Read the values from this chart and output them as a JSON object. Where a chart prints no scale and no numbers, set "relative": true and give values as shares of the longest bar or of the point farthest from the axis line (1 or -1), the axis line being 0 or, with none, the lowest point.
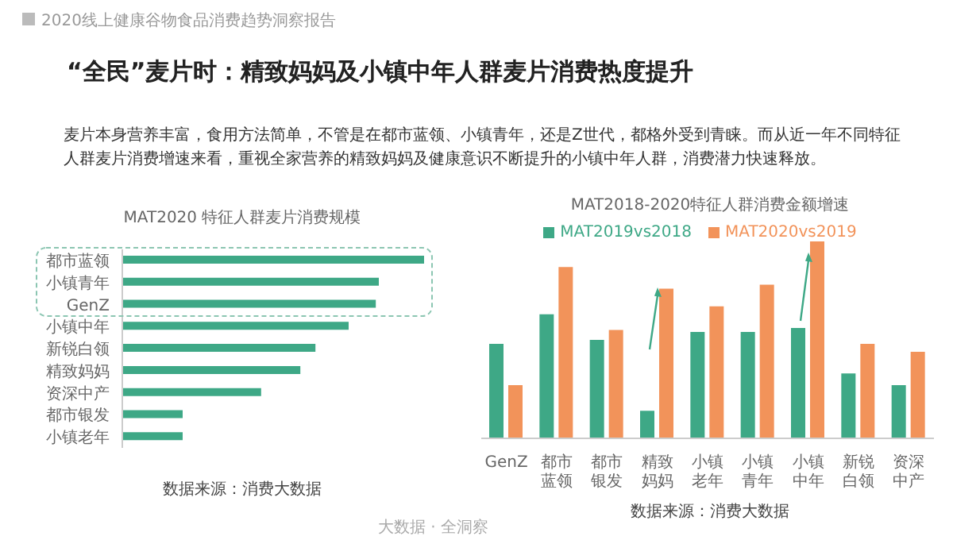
{
  "chart_data": [
    {
      "type": "bar",
      "orientation": "horizontal",
      "relative": true,
      "title": "MAT2020 特征人群麦片消费规模",
      "categories": [
        "都市蓝领",
        "小镇青年",
        "GenZ",
        "小镇中年",
        "新锐白领",
        "精致妈妈",
        "资深中产",
        "都市银发",
        "小镇老年"
      ],
      "values": [
        1,
        0.85,
        0.84,
        0.75,
        0.64,
        0.59,
        0.46,
        0.2,
        0.2
      ],
      "color": "#3ea886",
      "annotations": [
        "2020线上健康谷物食品消费趋势洞察报告",
        "“全民”麦片时：精致妈妈及小镇中年人群麦片消费热度提升",
        "麦片本身营养丰富，食用方法简单，不管是在都市蓝领、小镇青年，还是Z世代，都格外受到青睐。而从近一年不同特征人群麦片消费增速来看，重视全家营养的精致妈妈及健康意识不断提升的小镇中年人群，消费潜力快速释放。",
        "数据来源：消费大数据"
      ]
    },
    {
      "type": "bar",
      "relative": true,
      "title": "MAT2018-2020特征人群消费金额增速",
      "legend": "top",
      "categories": [
        "GenZ",
        "都市蓝领",
        "都市银发",
        "精致妈妈",
        "小镇老年",
        "小镇青年",
        "小镇中年",
        "新锐白领",
        "资深中产"
      ],
      "series": [
        {
          "name": "MAT2019vs2018",
          "color": "#3ea886",
          "values": [
            0.48,
            0.63,
            0.5,
            0.14,
            0.54,
            0.54,
            0.56,
            0.33,
            0.27
          ]
        },
        {
          "name": "MAT2020vs2019",
          "color": "#f2935a",
          "values": [
            0.27,
            0.87,
            0.55,
            0.76,
            0.67,
            0.78,
            1,
            0.48,
            0.44
          ]
        }
      ],
      "annotations": [
        "数据来源：消费大数据",
        "大数据 · 全洞察"
      ]
    }
  ]
}
